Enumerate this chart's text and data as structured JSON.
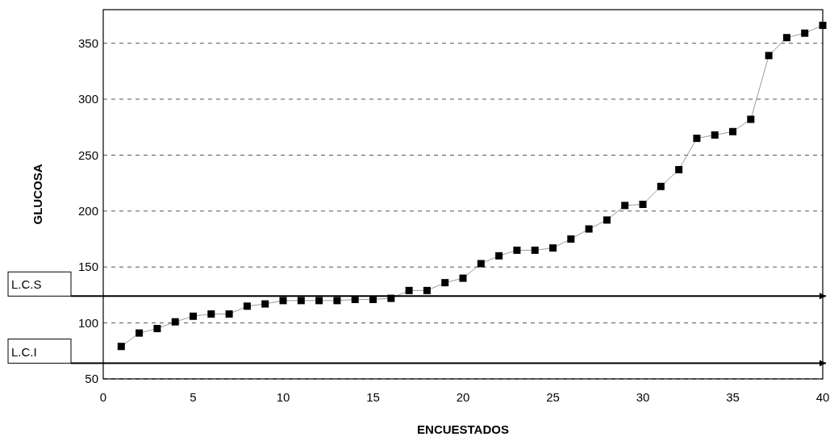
{
  "chart_data": {
    "type": "line",
    "xlabel": "ENCUESTADOS",
    "ylabel": "GLUCOSA",
    "x": [
      1,
      2,
      3,
      4,
      5,
      6,
      7,
      8,
      9,
      10,
      11,
      12,
      13,
      14,
      15,
      16,
      17,
      18,
      19,
      20,
      21,
      22,
      23,
      24,
      25,
      26,
      27,
      28,
      29,
      30,
      31,
      32,
      33,
      34,
      35,
      36,
      37,
      38,
      39,
      40
    ],
    "series": [
      {
        "color": "#000000",
        "values": [
          79,
          91,
          95,
          101,
          106,
          108,
          108,
          115,
          117,
          120,
          120,
          120,
          120,
          121,
          121,
          122,
          129,
          129,
          136,
          140,
          153,
          160,
          165,
          165,
          167,
          175,
          184,
          192,
          205,
          206,
          222,
          237,
          265,
          268,
          271,
          282,
          339,
          355,
          359,
          366
        ]
      }
    ],
    "xlim": [
      0,
      40
    ],
    "xticks": [
      0,
      5,
      10,
      15,
      20,
      25,
      30,
      35,
      40
    ],
    "ylim": [
      50,
      380
    ],
    "yticks": [
      50,
      100,
      150,
      200,
      250,
      300,
      350
    ],
    "grid": "y",
    "marker": "square",
    "ref_lines": [
      {
        "axis": "y",
        "value": 124,
        "label": "L.C.S",
        "color": "#000000"
      },
      {
        "axis": "y",
        "value": 64,
        "label": "L.C.I",
        "color": "#000000"
      }
    ]
  }
}
